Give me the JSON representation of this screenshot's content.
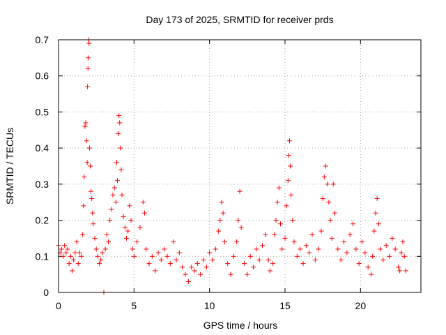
{
  "chart_data": {
    "type": "scatter",
    "title": "Day 173 of 2025, SRMTID for receiver prds",
    "xlabel": "GPS time / hours",
    "ylabel": "SRMTID / TECUs",
    "xlim": [
      0,
      24
    ],
    "ylim": [
      0,
      0.7
    ],
    "xticks": [
      0,
      5,
      10,
      15,
      20
    ],
    "yticks": [
      0,
      0.1,
      0.2,
      0.3,
      0.4,
      0.5,
      0.6,
      0.7
    ],
    "xtick_labels": [
      "0",
      "5",
      "10",
      "15",
      "20"
    ],
    "ytick_labels": [
      "0",
      "0.1",
      "0.2",
      "0.3",
      "0.4",
      "0.5",
      "0.6",
      "0.7"
    ],
    "grid": true,
    "marker": "plus",
    "color": "#ff0000",
    "series": [
      {
        "name": "SRMTID",
        "points": [
          [
            0.0,
            0.13
          ],
          [
            0.1,
            0.11
          ],
          [
            0.2,
            0.12
          ],
          [
            0.3,
            0.1
          ],
          [
            0.4,
            0.13
          ],
          [
            0.5,
            0.11
          ],
          [
            0.6,
            0.12
          ],
          [
            0.7,
            0.08
          ],
          [
            0.8,
            0.1
          ],
          [
            0.9,
            0.06
          ],
          [
            1.0,
            0.09
          ],
          [
            1.1,
            0.11
          ],
          [
            1.2,
            0.14
          ],
          [
            1.3,
            0.08
          ],
          [
            1.4,
            0.11
          ],
          [
            1.5,
            0.1
          ],
          [
            1.6,
            0.16
          ],
          [
            1.65,
            0.24
          ],
          [
            1.7,
            0.32
          ],
          [
            1.75,
            0.46
          ],
          [
            1.8,
            0.47
          ],
          [
            1.85,
            0.42
          ],
          [
            1.9,
            0.36
          ],
          [
            1.92,
            0.57
          ],
          [
            1.95,
            0.62
          ],
          [
            1.97,
            0.65
          ],
          [
            2.0,
            0.7
          ],
          [
            2.02,
            0.69
          ],
          [
            2.05,
            0.4
          ],
          [
            2.1,
            0.35
          ],
          [
            2.15,
            0.28
          ],
          [
            2.2,
            0.26
          ],
          [
            2.25,
            0.22
          ],
          [
            2.3,
            0.19
          ],
          [
            2.4,
            0.15
          ],
          [
            2.5,
            0.12
          ],
          [
            2.6,
            0.1
          ],
          [
            2.7,
            0.08
          ],
          [
            2.8,
            0.09
          ],
          [
            2.9,
            0.11
          ],
          [
            3.0,
            0.0
          ],
          [
            3.1,
            0.12
          ],
          [
            3.2,
            0.16
          ],
          [
            3.3,
            0.14
          ],
          [
            3.4,
            0.2
          ],
          [
            3.5,
            0.23
          ],
          [
            3.6,
            0.27
          ],
          [
            3.7,
            0.29
          ],
          [
            3.8,
            0.25
          ],
          [
            3.85,
            0.36
          ],
          [
            3.9,
            0.31
          ],
          [
            3.95,
            0.44
          ],
          [
            4.0,
            0.49
          ],
          [
            4.05,
            0.47
          ],
          [
            4.1,
            0.4
          ],
          [
            4.15,
            0.34
          ],
          [
            4.2,
            0.27
          ],
          [
            4.3,
            0.21
          ],
          [
            4.4,
            0.18
          ],
          [
            4.5,
            0.15
          ],
          [
            4.6,
            0.17
          ],
          [
            4.7,
            0.24
          ],
          [
            4.8,
            0.2
          ],
          [
            4.9,
            0.12
          ],
          [
            5.0,
            0.1
          ],
          [
            5.2,
            0.14
          ],
          [
            5.4,
            0.18
          ],
          [
            5.6,
            0.25
          ],
          [
            5.7,
            0.22
          ],
          [
            5.8,
            0.12
          ],
          [
            6.0,
            0.08
          ],
          [
            6.2,
            0.1
          ],
          [
            6.4,
            0.06
          ],
          [
            6.6,
            0.11
          ],
          [
            6.8,
            0.09
          ],
          [
            7.0,
            0.12
          ],
          [
            7.2,
            0.1
          ],
          [
            7.4,
            0.08
          ],
          [
            7.6,
            0.14
          ],
          [
            7.8,
            0.09
          ],
          [
            8.0,
            0.11
          ],
          [
            8.2,
            0.07
          ],
          [
            8.4,
            0.05
          ],
          [
            8.6,
            0.03
          ],
          [
            8.8,
            0.07
          ],
          [
            9.0,
            0.06
          ],
          [
            9.2,
            0.08
          ],
          [
            9.4,
            0.05
          ],
          [
            9.6,
            0.09
          ],
          [
            9.8,
            0.07
          ],
          [
            10.0,
            0.11
          ],
          [
            10.2,
            0.09
          ],
          [
            10.4,
            0.12
          ],
          [
            10.6,
            0.17
          ],
          [
            10.7,
            0.2
          ],
          [
            10.8,
            0.25
          ],
          [
            10.9,
            0.22
          ],
          [
            11.0,
            0.14
          ],
          [
            11.2,
            0.08
          ],
          [
            11.4,
            0.05
          ],
          [
            11.6,
            0.1
          ],
          [
            11.8,
            0.14
          ],
          [
            11.9,
            0.2
          ],
          [
            12.0,
            0.28
          ],
          [
            12.1,
            0.18
          ],
          [
            12.3,
            0.08
          ],
          [
            12.5,
            0.05
          ],
          [
            12.7,
            0.1
          ],
          [
            12.9,
            0.07
          ],
          [
            13.1,
            0.12
          ],
          [
            13.3,
            0.09
          ],
          [
            13.5,
            0.13
          ],
          [
            13.7,
            0.16
          ],
          [
            13.9,
            0.09
          ],
          [
            14.0,
            0.06
          ],
          [
            14.2,
            0.08
          ],
          [
            14.3,
            0.16
          ],
          [
            14.4,
            0.2
          ],
          [
            14.5,
            0.25
          ],
          [
            14.6,
            0.29
          ],
          [
            14.7,
            0.19
          ],
          [
            14.8,
            0.12
          ],
          [
            15.0,
            0.15
          ],
          [
            15.1,
            0.24
          ],
          [
            15.2,
            0.31
          ],
          [
            15.25,
            0.38
          ],
          [
            15.3,
            0.42
          ],
          [
            15.35,
            0.35
          ],
          [
            15.4,
            0.27
          ],
          [
            15.5,
            0.2
          ],
          [
            15.6,
            0.14
          ],
          [
            15.8,
            0.1
          ],
          [
            16.0,
            0.12
          ],
          [
            16.2,
            0.08
          ],
          [
            16.4,
            0.13
          ],
          [
            16.6,
            0.11
          ],
          [
            16.8,
            0.16
          ],
          [
            17.0,
            0.09
          ],
          [
            17.2,
            0.12
          ],
          [
            17.4,
            0.17
          ],
          [
            17.5,
            0.26
          ],
          [
            17.6,
            0.32
          ],
          [
            17.7,
            0.35
          ],
          [
            17.8,
            0.3
          ],
          [
            17.9,
            0.25
          ],
          [
            18.0,
            0.2
          ],
          [
            18.1,
            0.15
          ],
          [
            18.2,
            0.3
          ],
          [
            18.3,
            0.22
          ],
          [
            18.5,
            0.12
          ],
          [
            18.7,
            0.09
          ],
          [
            18.9,
            0.14
          ],
          [
            19.1,
            0.11
          ],
          [
            19.3,
            0.16
          ],
          [
            19.5,
            0.19
          ],
          [
            19.7,
            0.12
          ],
          [
            19.9,
            0.08
          ],
          [
            20.1,
            0.14
          ],
          [
            20.3,
            0.11
          ],
          [
            20.5,
            0.07
          ],
          [
            20.7,
            0.05
          ],
          [
            20.8,
            0.1
          ],
          [
            20.9,
            0.17
          ],
          [
            21.0,
            0.22
          ],
          [
            21.1,
            0.26
          ],
          [
            21.2,
            0.19
          ],
          [
            21.3,
            0.12
          ],
          [
            21.5,
            0.09
          ],
          [
            21.7,
            0.13
          ],
          [
            21.9,
            0.1
          ],
          [
            22.1,
            0.15
          ],
          [
            22.3,
            0.12
          ],
          [
            22.5,
            0.07
          ],
          [
            22.6,
            0.06
          ],
          [
            22.7,
            0.11
          ],
          [
            22.8,
            0.14
          ],
          [
            22.9,
            0.1
          ],
          [
            23.0,
            0.06
          ]
        ]
      }
    ]
  }
}
